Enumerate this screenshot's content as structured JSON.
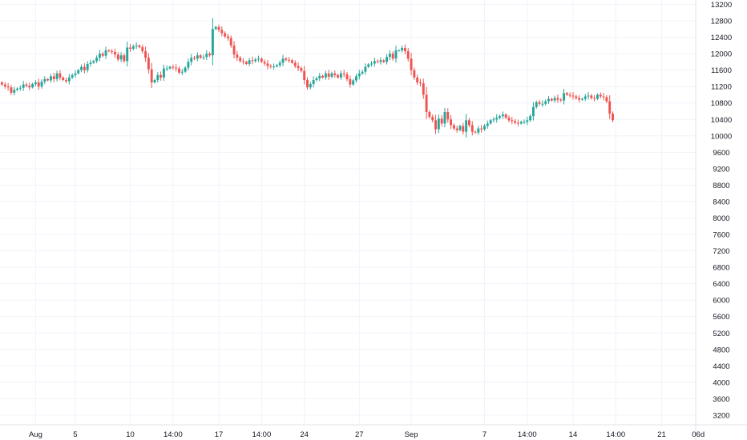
{
  "chart_data": {
    "type": "candlestick",
    "title": "",
    "xlabel": "",
    "ylabel": "",
    "ylim": [
      3000,
      13200
    ],
    "grid": true,
    "colors": {
      "up": "#26a69a",
      "down": "#ef5350",
      "grid": "#f0f3fa",
      "axis_text": "#131722",
      "axis_line": "#e0e3eb"
    },
    "y_ticks": [
      "13200",
      "12800",
      "12400",
      "12000",
      "11600",
      "11200",
      "10800",
      "10400",
      "10000",
      "9600",
      "9200",
      "8800",
      "8400",
      "8000",
      "7600",
      "7200",
      "6800",
      "6400",
      "6000",
      "5600",
      "5200",
      "4800",
      "4400",
      "4000",
      "3600",
      "3200"
    ],
    "x_ticks": [
      "Aug",
      "5",
      "10",
      "14:00",
      "17",
      "14:00",
      "24",
      "27",
      "Sep",
      "7",
      "14:00",
      "14",
      "14:00",
      "21",
      "06d"
    ],
    "x_tick_index": [
      11,
      24,
      42,
      56,
      71,
      85,
      99,
      117,
      134,
      158,
      172,
      187,
      201,
      216,
      228
    ],
    "candles": [
      [
        11300,
        11250,
        11200,
        11180,
        11050,
        11120,
        11150,
        11170,
        11250,
        11220,
        11180,
        11260,
        11300,
        11200,
        11320,
        11380,
        11350,
        11450,
        11380,
        11520,
        11420,
        11360,
        11330,
        11420,
        11480,
        11520,
        11600,
        11680,
        11600,
        11750,
        11780,
        11820,
        11900,
        12000,
        11950,
        12080,
        12060,
        12040,
        11980,
        11860,
        11960,
        11820,
        12150,
        12120,
        12180,
        12200,
        12160,
        12060,
        11900,
        11620,
        11300,
        11360,
        11480,
        11420,
        11640,
        11640,
        11680,
        11660,
        11640,
        11540,
        11560,
        11660,
        11800,
        11900,
        11880,
        11960,
        11900,
        11920,
        12000,
        11960,
        12600,
        12650,
        12580,
        12500,
        12420,
        12380,
        12200,
        11980,
        11900,
        11820,
        11800,
        11750,
        11840,
        11820,
        11860,
        11880,
        11800,
        11760,
        11700,
        11680,
        11690,
        11720,
        11780,
        11880,
        11850,
        11840,
        11780,
        11700,
        11650,
        11580,
        11360,
        11180,
        11260,
        11360,
        11400,
        11460,
        11420,
        11520,
        11440,
        11520,
        11480,
        11420,
        11520,
        11500,
        11380,
        11250,
        11350,
        11450,
        11520,
        11560,
        11680,
        11740,
        11760,
        11820,
        11800,
        11840,
        11800,
        11920,
        12000,
        11880,
        12080,
        12080,
        12140,
        12060,
        11880,
        11600,
        11420,
        11300,
        11280,
        11000,
        10580,
        10460,
        10380,
        10160,
        10420,
        10300,
        10580,
        10400,
        10260,
        10180,
        10140,
        10240,
        10100,
        10380,
        10260,
        10100,
        10080,
        10180,
        10160,
        10240,
        10300,
        10380,
        10400,
        10440,
        10480,
        10520,
        10440,
        10380,
        10360,
        10320,
        10300,
        10340,
        10340,
        10380,
        10480,
        10700,
        10820,
        10780,
        10780,
        10840,
        10900,
        10860,
        10920,
        10880,
        10860,
        11040,
        11000,
        10980,
        10960,
        10920,
        10880,
        10900,
        10960,
        10980,
        10920,
        10900,
        11000,
        10960,
        10940,
        10840,
        10540
      ],
      [
        11250,
        11200,
        11180,
        11050,
        11120,
        11150,
        11170,
        11250,
        11220,
        11180,
        11260,
        11300,
        11200,
        11320,
        11380,
        11350,
        11450,
        11380,
        11520,
        11420,
        11360,
        11330,
        11420,
        11480,
        11520,
        11600,
        11680,
        11600,
        11750,
        11780,
        11820,
        11900,
        12000,
        11950,
        12080,
        12060,
        12040,
        11980,
        11860,
        11960,
        11820,
        12150,
        12120,
        12180,
        12200,
        12160,
        12060,
        11900,
        11620,
        11300,
        11360,
        11480,
        11420,
        11640,
        11640,
        11680,
        11660,
        11640,
        11540,
        11560,
        11660,
        11800,
        11900,
        11880,
        11960,
        11900,
        11920,
        12000,
        11960,
        12600,
        12650,
        12580,
        12500,
        12420,
        12380,
        12200,
        11980,
        11900,
        11820,
        11800,
        11750,
        11840,
        11820,
        11860,
        11880,
        11800,
        11760,
        11700,
        11680,
        11690,
        11720,
        11780,
        11880,
        11850,
        11840,
        11780,
        11700,
        11650,
        11580,
        11360,
        11180,
        11260,
        11360,
        11400,
        11460,
        11420,
        11520,
        11440,
        11520,
        11480,
        11420,
        11520,
        11500,
        11380,
        11250,
        11350,
        11450,
        11520,
        11560,
        11680,
        11740,
        11760,
        11820,
        11800,
        11840,
        11800,
        11920,
        12000,
        11880,
        12080,
        12080,
        12140,
        12060,
        11880,
        11600,
        11420,
        11300,
        11280,
        11000,
        10580,
        10460,
        10380,
        10160,
        10420,
        10300,
        10580,
        10400,
        10260,
        10180,
        10140,
        10240,
        10100,
        10380,
        10260,
        10100,
        10080,
        10180,
        10160,
        10240,
        10300,
        10380,
        10400,
        10440,
        10480,
        10520,
        10440,
        10380,
        10360,
        10320,
        10300,
        10340,
        10340,
        10380,
        10480,
        10700,
        10820,
        10780,
        10780,
        10840,
        10900,
        10860,
        10920,
        10880,
        10860,
        11040,
        11000,
        10980,
        10960,
        10920,
        10880,
        10900,
        10960,
        10980,
        10920,
        10900,
        11000,
        10960,
        10940,
        10840,
        10540,
        10380
      ]
    ]
  }
}
